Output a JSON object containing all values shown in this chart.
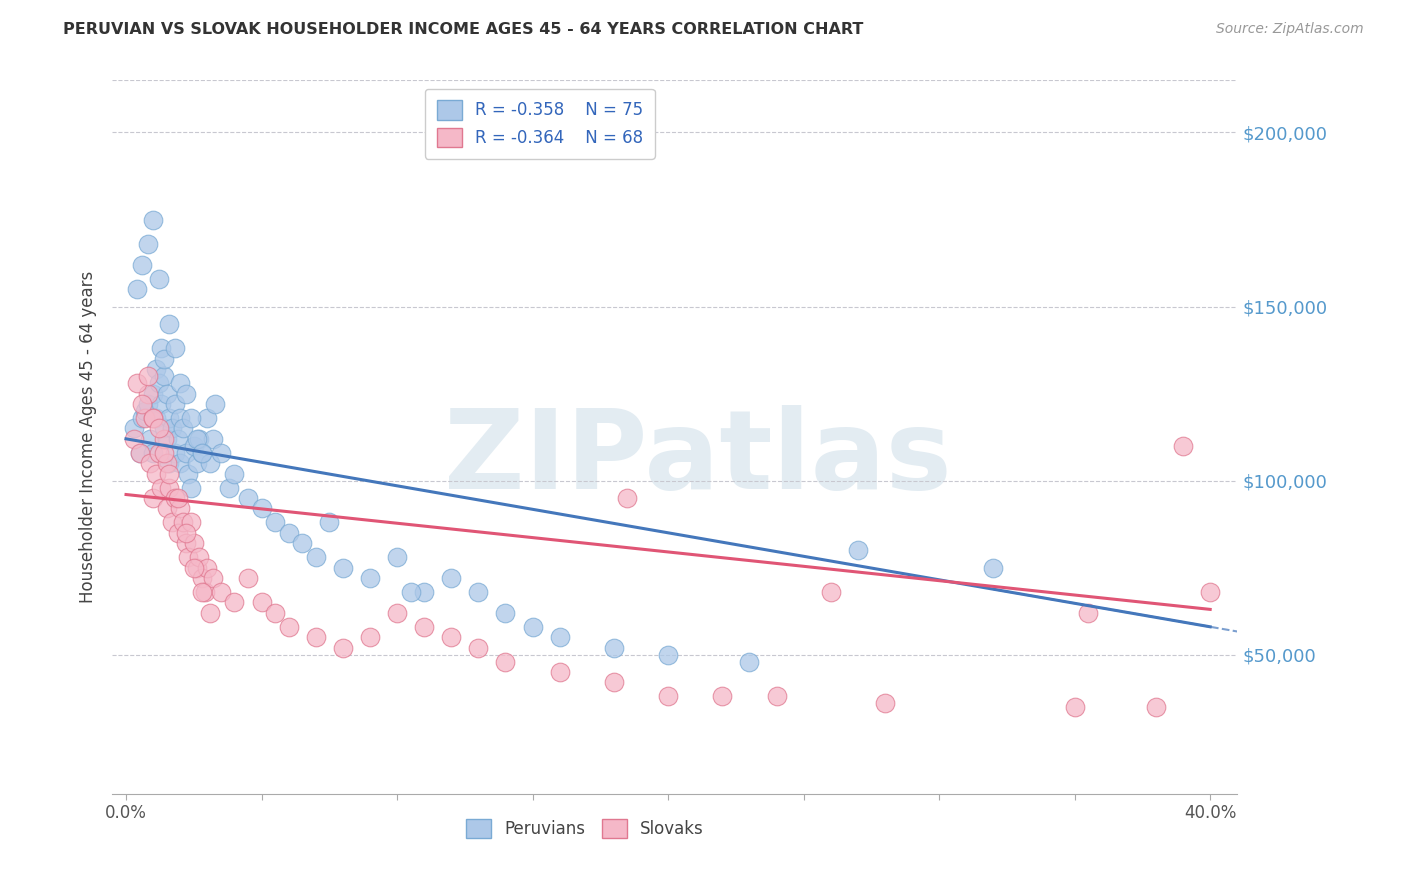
{
  "title": "PERUVIAN VS SLOVAK HOUSEHOLDER INCOME AGES 45 - 64 YEARS CORRELATION CHART",
  "source": "Source: ZipAtlas.com",
  "ylabel": "Householder Income Ages 45 - 64 years",
  "ytick_labels": [
    "$50,000",
    "$100,000",
    "$150,000",
    "$200,000"
  ],
  "ytick_vals": [
    50000,
    100000,
    150000,
    200000
  ],
  "ylim": [
    10000,
    215000
  ],
  "xlim": [
    -0.5,
    41.0
  ],
  "peruvian_color": "#adc8e8",
  "peruvian_edge": "#7aaad4",
  "slovak_color": "#f5b8c8",
  "slovak_edge": "#e07890",
  "peruvian_line_color": "#4477bb",
  "slovak_line_color": "#e05575",
  "legend_R_peruvian": "R = -0.358",
  "legend_N_peruvian": "N = 75",
  "legend_R_slovak": "R = -0.364",
  "legend_N_slovak": "N = 68",
  "watermark": "ZIPatlas",
  "watermark_color": "#ccdde8",
  "axis_label_color": "#5599cc",
  "title_color": "#333333",
  "peruvian_x": [
    0.3,
    0.5,
    0.6,
    0.7,
    0.8,
    0.9,
    1.0,
    1.0,
    1.1,
    1.1,
    1.2,
    1.3,
    1.3,
    1.4,
    1.4,
    1.5,
    1.5,
    1.6,
    1.6,
    1.7,
    1.8,
    1.8,
    1.9,
    2.0,
    2.0,
    2.1,
    2.2,
    2.3,
    2.4,
    2.5,
    2.6,
    2.7,
    2.8,
    3.0,
    3.1,
    3.2,
    3.5,
    3.8,
    4.0,
    4.5,
    5.0,
    5.5,
    6.0,
    6.5,
    7.0,
    7.5,
    8.0,
    9.0,
    10.0,
    11.0,
    12.0,
    13.0,
    14.0,
    15.0,
    16.0,
    18.0,
    20.0,
    23.0,
    27.0,
    32.0,
    0.4,
    0.6,
    0.8,
    1.0,
    1.2,
    1.4,
    1.6,
    1.8,
    2.0,
    2.2,
    2.4,
    2.6,
    2.8,
    3.3,
    10.5
  ],
  "peruvian_y": [
    115000,
    108000,
    118000,
    120000,
    122000,
    112000,
    125000,
    108000,
    132000,
    118000,
    128000,
    138000,
    122000,
    130000,
    115000,
    125000,
    112000,
    118000,
    105000,
    115000,
    108000,
    122000,
    112000,
    118000,
    105000,
    115000,
    108000,
    102000,
    98000,
    110000,
    105000,
    112000,
    108000,
    118000,
    105000,
    112000,
    108000,
    98000,
    102000,
    95000,
    92000,
    88000,
    85000,
    82000,
    78000,
    88000,
    75000,
    72000,
    78000,
    68000,
    72000,
    68000,
    62000,
    58000,
    55000,
    52000,
    50000,
    48000,
    80000,
    75000,
    155000,
    162000,
    168000,
    175000,
    158000,
    135000,
    145000,
    138000,
    128000,
    125000,
    118000,
    112000,
    108000,
    122000,
    68000
  ],
  "slovak_x": [
    0.3,
    0.5,
    0.7,
    0.8,
    0.9,
    1.0,
    1.0,
    1.1,
    1.2,
    1.3,
    1.4,
    1.5,
    1.5,
    1.6,
    1.7,
    1.8,
    1.9,
    2.0,
    2.1,
    2.2,
    2.3,
    2.4,
    2.5,
    2.6,
    2.7,
    2.8,
    2.9,
    3.0,
    3.2,
    3.5,
    4.0,
    4.5,
    5.0,
    5.5,
    6.0,
    7.0,
    8.0,
    9.0,
    10.0,
    11.0,
    12.0,
    13.0,
    14.0,
    16.0,
    18.0,
    20.0,
    22.0,
    24.0,
    28.0,
    35.0,
    38.0,
    40.0,
    0.4,
    0.6,
    0.8,
    1.0,
    1.2,
    1.4,
    1.6,
    1.9,
    2.2,
    2.5,
    2.8,
    3.1,
    18.5,
    26.0,
    35.5,
    39.0
  ],
  "slovak_y": [
    112000,
    108000,
    118000,
    125000,
    105000,
    118000,
    95000,
    102000,
    108000,
    98000,
    112000,
    105000,
    92000,
    98000,
    88000,
    95000,
    85000,
    92000,
    88000,
    82000,
    78000,
    88000,
    82000,
    75000,
    78000,
    72000,
    68000,
    75000,
    72000,
    68000,
    65000,
    72000,
    65000,
    62000,
    58000,
    55000,
    52000,
    55000,
    62000,
    58000,
    55000,
    52000,
    48000,
    45000,
    42000,
    38000,
    38000,
    38000,
    36000,
    35000,
    35000,
    68000,
    128000,
    122000,
    130000,
    118000,
    115000,
    108000,
    102000,
    95000,
    85000,
    75000,
    68000,
    62000,
    95000,
    68000,
    62000,
    110000
  ],
  "trend_peruvian_x0": 0,
  "trend_peruvian_y0": 112000,
  "trend_peruvian_x1": 40,
  "trend_peruvian_y1": 58000,
  "trend_slovak_x0": 0,
  "trend_slovak_y0": 96000,
  "trend_slovak_x1": 40,
  "trend_slovak_y1": 63000,
  "xtick_major": [
    0.0,
    40.0
  ],
  "xtick_minor": [
    5.0,
    10.0,
    15.0,
    20.0,
    25.0,
    30.0,
    35.0
  ],
  "xtick_major_labels": [
    "0.0%",
    "40.0%"
  ]
}
